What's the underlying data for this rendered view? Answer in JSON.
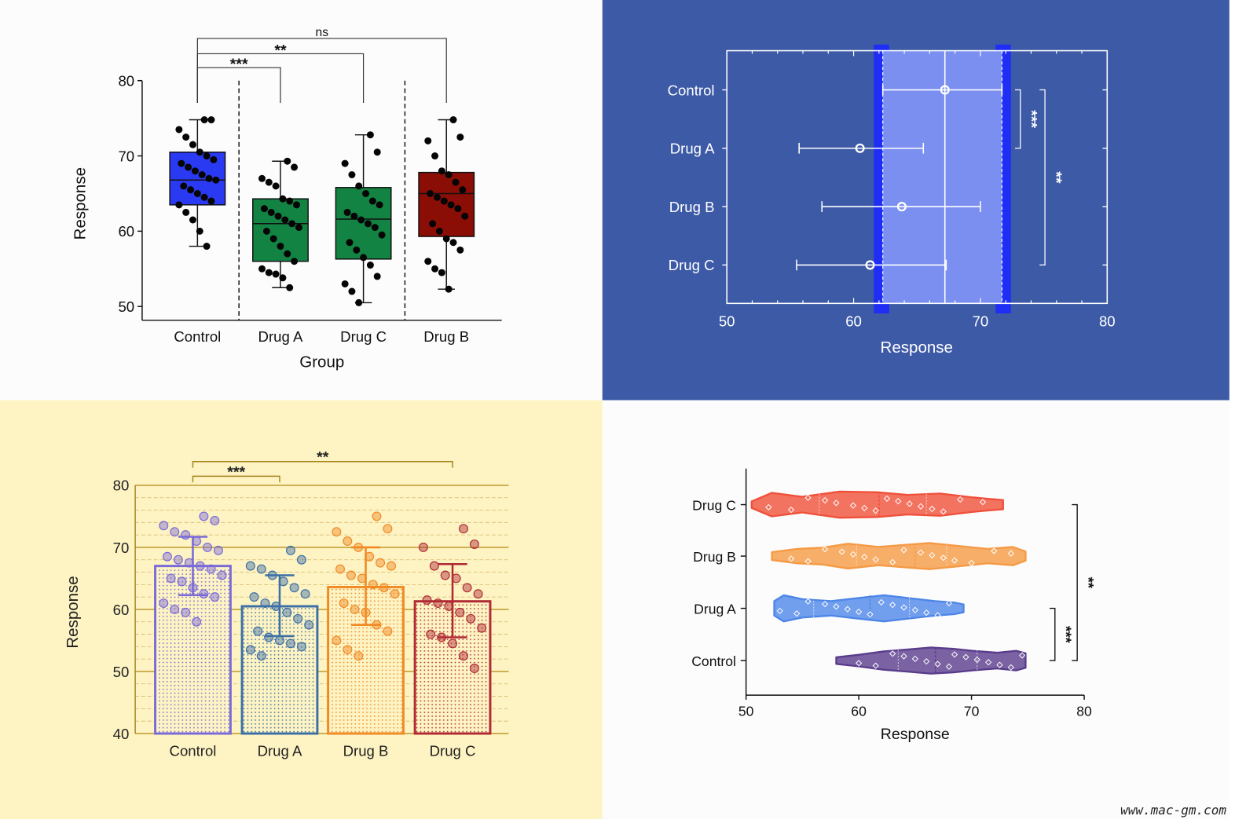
{
  "watermark": "www.mac-gm.com",
  "chart_data": [
    {
      "type": "box",
      "xlabel": "Group",
      "ylabel": "Response",
      "ylim": [
        50,
        80
      ],
      "yticks": [
        50,
        60,
        70,
        80
      ],
      "categories": [
        "Control",
        "Drug A",
        "Drug C",
        "Drug B"
      ],
      "background": "#fcfcfc",
      "boxes": [
        {
          "name": "Control",
          "color": "#2a3af2",
          "min": 58,
          "q1": 63.5,
          "median": 66.8,
          "q3": 70.5,
          "max": 74.8,
          "points": [
            74.8,
            74.8,
            73.5,
            72.5,
            71.5,
            70.5,
            70.0,
            69.5,
            69.0,
            68.5,
            68.0,
            67.5,
            67.0,
            66.8,
            66.0,
            65.5,
            65.0,
            64.5,
            64.0,
            63.5,
            62.5,
            61.5,
            60.0,
            58.0
          ]
        },
        {
          "name": "Drug A",
          "color": "#138343",
          "min": 52.5,
          "q1": 56.0,
          "median": 61.0,
          "q3": 64.3,
          "max": 69.3,
          "points": [
            69.3,
            68.5,
            67.0,
            66.5,
            66.0,
            64.3,
            64.0,
            63.5,
            63.0,
            62.5,
            62.0,
            61.5,
            61.0,
            60.5,
            60.0,
            59.0,
            58.0,
            57.0,
            56.0,
            55.0,
            54.5,
            54.3,
            53.8,
            52.5
          ]
        },
        {
          "name": "Drug C",
          "color": "#138343",
          "min": 50.5,
          "q1": 56.3,
          "median": 61.6,
          "q3": 65.8,
          "max": 72.8,
          "points": [
            72.8,
            70.5,
            69.0,
            67.5,
            66.0,
            65.0,
            64.0,
            63.5,
            62.5,
            62.0,
            61.5,
            61.0,
            60.5,
            59.5,
            58.5,
            57.5,
            56.5,
            55.5,
            54.0,
            53.0,
            52.0,
            50.5
          ]
        },
        {
          "name": "Drug B",
          "color": "#8b0e06",
          "min": 52.3,
          "q1": 59.3,
          "median": 65.0,
          "q3": 67.8,
          "max": 74.8,
          "points": [
            74.8,
            72.5,
            72.0,
            70.0,
            68.0,
            67.5,
            66.5,
            65.5,
            65.0,
            64.5,
            64.0,
            63.5,
            63.0,
            62.0,
            61.0,
            60.0,
            59.0,
            58.5,
            57.5,
            56.0,
            55.0,
            54.5,
            52.3
          ]
        }
      ],
      "significance": [
        {
          "from": "Control",
          "to": "Drug A",
          "label": "***"
        },
        {
          "from": "Control",
          "to": "Drug C",
          "label": "**"
        },
        {
          "from": "Control",
          "to": "Drug B",
          "label": "ns"
        }
      ]
    },
    {
      "type": "forest",
      "xlabel": "Response",
      "xlim": [
        50,
        80
      ],
      "xticks": [
        50,
        60,
        70,
        80
      ],
      "categories": [
        "Control",
        "Drug A",
        "Drug B",
        "Drug C"
      ],
      "background": "#3d5aa6",
      "means": [
        67.2,
        60.5,
        63.8,
        61.3
      ],
      "lower": [
        62.3,
        55.7,
        57.5,
        55.5
      ],
      "upper": [
        71.7,
        65.5,
        70.0,
        67.3
      ],
      "reference_line": 67.2,
      "control_band": [
        62.3,
        71.7
      ],
      "significance": [
        {
          "from": "Control",
          "to": "Drug A",
          "label": "***"
        },
        {
          "from": "Control",
          "to": "Drug C",
          "label": "**"
        }
      ]
    },
    {
      "type": "bar",
      "ylabel": "Response",
      "ylim": [
        40,
        80
      ],
      "yticks": [
        40,
        50,
        60,
        70,
        80
      ],
      "categories": [
        "Control",
        "Drug A",
        "Drug B",
        "Drug C"
      ],
      "background": "#fdf3c3",
      "values": [
        67.0,
        60.5,
        63.6,
        61.3
      ],
      "sd_lower": [
        62.3,
        55.7,
        57.5,
        55.5
      ],
      "sd_upper": [
        71.7,
        65.5,
        70.0,
        67.3
      ],
      "colors": [
        "#7a6ad8",
        "#3b6fa6",
        "#f08a24",
        "#b02a34"
      ],
      "points": [
        [
          75.0,
          74.3,
          73.5,
          72.5,
          72.0,
          71.0,
          70.0,
          69.5,
          68.5,
          68.0,
          67.5,
          67.0,
          66.5,
          65.5,
          65.0,
          64.5,
          63.5,
          62.5,
          62.0,
          61.0,
          60.0,
          59.5,
          58.0
        ],
        [
          69.5,
          68.0,
          67.0,
          66.5,
          65.5,
          64.5,
          63.5,
          62.5,
          62.0,
          61.0,
          60.5,
          59.5,
          58.5,
          57.5,
          56.5,
          55.5,
          55.0,
          54.5,
          54.0,
          53.5,
          52.5
        ],
        [
          75.0,
          73.0,
          72.5,
          71.0,
          70.0,
          68.5,
          67.5,
          67.0,
          66.5,
          65.5,
          65.0,
          64.0,
          63.5,
          62.5,
          61.0,
          60.0,
          59.5,
          57.5,
          56.5,
          55.0,
          53.5,
          52.5
        ],
        [
          73.0,
          70.5,
          70.0,
          67.0,
          65.5,
          65.0,
          63.5,
          62.5,
          61.5,
          61.0,
          60.5,
          59.5,
          58.5,
          57.0,
          56.0,
          55.5,
          54.5,
          52.5,
          50.5
        ]
      ],
      "significance": [
        {
          "from": "Control",
          "to": "Drug A",
          "label": "***"
        },
        {
          "from": "Control",
          "to": "Drug C",
          "label": "**"
        }
      ]
    },
    {
      "type": "violin",
      "xlabel": "Response",
      "xlim": [
        50,
        80
      ],
      "xticks": [
        50,
        60,
        70,
        80
      ],
      "categories": [
        "Drug C",
        "Drug B",
        "Drug A",
        "Control"
      ],
      "background": "#fcfcfc",
      "violins": [
        {
          "name": "Drug C",
          "color": "#f0503a",
          "min": 50.5,
          "q1": 56.5,
          "median": 61.8,
          "q3": 66.0,
          "max": 72.8,
          "points": [
            52,
            54,
            55.5,
            57,
            58,
            59.5,
            60.5,
            61.5,
            62.5,
            63.5,
            64.5,
            65.5,
            66.5,
            67.5,
            69,
            71
          ]
        },
        {
          "name": "Drug B",
          "color": "#f59a44",
          "min": 52.3,
          "q1": 59.8,
          "median": 65.0,
          "q3": 67.8,
          "max": 74.8,
          "points": [
            54,
            55.5,
            57,
            58.5,
            59.5,
            60.5,
            61.5,
            63,
            64,
            65.5,
            66.5,
            67.5,
            68.5,
            70,
            72,
            73.5
          ]
        },
        {
          "name": "Drug A",
          "color": "#4d86e8",
          "min": 52.5,
          "q1": 56.0,
          "median": 61.0,
          "q3": 64.5,
          "max": 69.3,
          "points": [
            53,
            54.5,
            55.5,
            57,
            58,
            59,
            60,
            61,
            62,
            63,
            64,
            65,
            66,
            67,
            68
          ]
        },
        {
          "name": "Control",
          "color": "#5a3c8c",
          "min": 58.0,
          "q1": 63.5,
          "median": 66.8,
          "q3": 70.5,
          "max": 74.8,
          "points": [
            60,
            61.5,
            63,
            64,
            65,
            66,
            67,
            68,
            68.5,
            69.5,
            70.5,
            71.5,
            72.5,
            73.5,
            74.5
          ]
        }
      ],
      "significance": [
        {
          "from": "Control",
          "to": "Drug A",
          "label": "***"
        },
        {
          "from": "Control",
          "to": "Drug C",
          "label": "**"
        }
      ]
    }
  ]
}
